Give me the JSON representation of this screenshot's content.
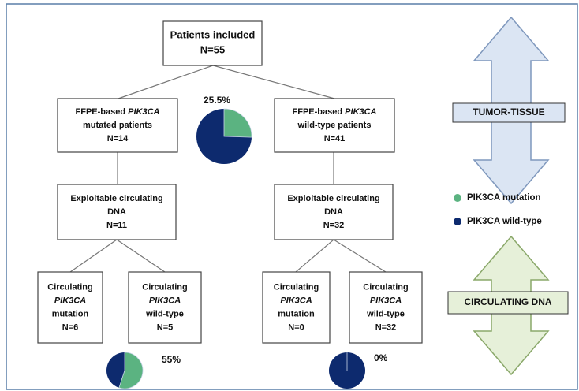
{
  "nodes": [
    {
      "lines": [
        [
          {
            "text": "Patients included"
          }
        ],
        [
          {
            "text": "N=55"
          }
        ]
      ]
    },
    {
      "lines": [
        [
          {
            "text": "FFPE-based "
          },
          {
            "text": "PIK3CA",
            "italic": true
          }
        ],
        [
          {
            "text": "mutated patients"
          }
        ],
        [
          {
            "text": "N=14"
          }
        ]
      ]
    },
    {
      "lines": [
        [
          {
            "text": "FFPE-based "
          },
          {
            "text": "PIK3CA",
            "italic": true
          }
        ],
        [
          {
            "text": "wild-type patients"
          }
        ],
        [
          {
            "text": "N=41"
          }
        ]
      ]
    },
    {
      "lines": [
        [
          {
            "text": "Exploitable circulating"
          }
        ],
        [
          {
            "text": "DNA"
          }
        ],
        [
          {
            "text": "N=11"
          }
        ]
      ]
    },
    {
      "lines": [
        [
          {
            "text": "Exploitable circulating"
          }
        ],
        [
          {
            "text": "DNA"
          }
        ],
        [
          {
            "text": "N=32"
          }
        ]
      ]
    },
    {
      "lines": [
        [
          {
            "text": "Circulating"
          }
        ],
        [
          {
            "text": "PIK3CA",
            "italic": true
          }
        ],
        [
          {
            "text": "mutation"
          }
        ],
        [
          {
            "text": "N=6"
          }
        ]
      ]
    },
    {
      "lines": [
        [
          {
            "text": "Circulating"
          }
        ],
        [
          {
            "text": "PIK3CA",
            "italic": true
          }
        ],
        [
          {
            "text": "wild-type"
          }
        ],
        [
          {
            "text": "N=5"
          }
        ]
      ]
    },
    {
      "lines": [
        [
          {
            "text": "Circulating"
          }
        ],
        [
          {
            "text": "PIK3CA",
            "italic": true
          }
        ],
        [
          {
            "text": "mutation"
          }
        ],
        [
          {
            "text": "N=0"
          }
        ]
      ]
    },
    {
      "lines": [
        [
          {
            "text": "Circulating"
          }
        ],
        [
          {
            "text": "PIK3CA",
            "italic": true
          }
        ],
        [
          {
            "text": "wild-type"
          }
        ],
        [
          {
            "text": "N=32"
          }
        ]
      ]
    }
  ],
  "pies": [
    {
      "value": 25.5,
      "label": "25.5%"
    },
    {
      "value": 55,
      "label": "55%"
    },
    {
      "value": 0,
      "label": "0%"
    }
  ],
  "legend": [
    {
      "label": "PIK3CA mutation",
      "color": "#5bb381"
    },
    {
      "label": "PIK3CA wild-type",
      "color": "#0d2a6e"
    }
  ],
  "arrows": [
    "TUMOR-TISSUE",
    "CIRCULATING DNA"
  ]
}
